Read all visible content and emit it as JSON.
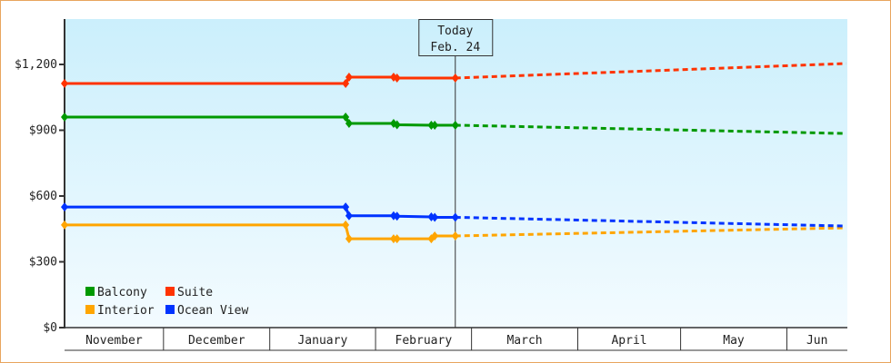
{
  "chart_data": {
    "type": "line",
    "title": "",
    "xlabel": "",
    "ylabel": "",
    "ylim": [
      0,
      1400
    ],
    "y_ticks": [
      "$0",
      "$300",
      "$600",
      "$900",
      "$1,200"
    ],
    "y_tick_values": [
      0,
      300,
      600,
      900,
      1200
    ],
    "x_range": [
      "Nov 2",
      "Jun 18"
    ],
    "month_labels": [
      "November",
      "December",
      "January",
      "February",
      "March",
      "April",
      "May",
      "Jun"
    ],
    "grid": false,
    "today_marker": {
      "line1": "Today",
      "line2": "Feb. 24",
      "date": "Feb 24"
    },
    "legend": {
      "placement": "bottom-left"
    },
    "series": [
      {
        "name": "Balcony",
        "color": "#009900",
        "x": [
          "Nov 2",
          "Jan 23",
          "Jan 24",
          "Feb 6",
          "Feb 7",
          "Feb 17",
          "Feb 18",
          "Feb 24"
        ],
        "values": [
          960,
          960,
          931,
          931,
          925,
          923,
          923,
          923
        ],
        "forecast": {
          "x": [
            "Feb 24",
            "Jun 18"
          ],
          "values": [
            923,
            885
          ]
        }
      },
      {
        "name": "Suite",
        "color": "#ff3300",
        "x": [
          "Nov 2",
          "Jan 23",
          "Jan 24",
          "Feb 6",
          "Feb 7",
          "Feb 24"
        ],
        "values": [
          1113,
          1113,
          1142,
          1142,
          1138,
          1138
        ],
        "forecast": {
          "x": [
            "Feb 24",
            "Jun 18"
          ],
          "values": [
            1138,
            1204
          ]
        }
      },
      {
        "name": "Interior",
        "color": "#ffa500",
        "x": [
          "Nov 2",
          "Jan 23",
          "Jan 24",
          "Feb 6",
          "Feb 7",
          "Feb 17",
          "Feb 18",
          "Feb 24"
        ],
        "values": [
          468,
          468,
          405,
          405,
          405,
          405,
          418,
          418
        ],
        "forecast": {
          "x": [
            "Feb 24",
            "Jun 18"
          ],
          "values": [
            418,
            455
          ]
        }
      },
      {
        "name": "Ocean View",
        "color": "#0033ff",
        "x": [
          "Nov 2",
          "Jan 23",
          "Jan 24",
          "Feb 6",
          "Feb 7",
          "Feb 17",
          "Feb 18",
          "Feb 24"
        ],
        "values": [
          550,
          550,
          510,
          510,
          508,
          505,
          503,
          503
        ],
        "forecast": {
          "x": [
            "Feb 24",
            "Jun 18"
          ],
          "values": [
            503,
            463
          ]
        }
      }
    ]
  }
}
